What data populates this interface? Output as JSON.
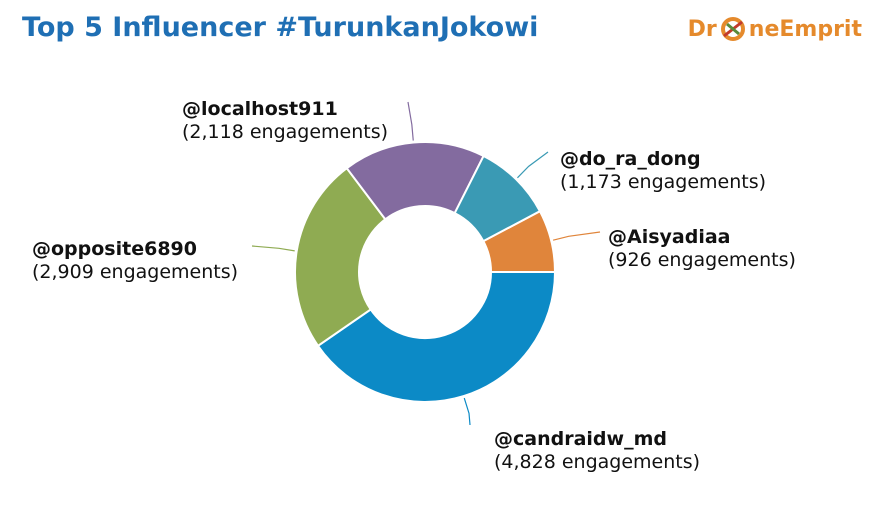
{
  "title": "Top 5 Influencer #TurunkanJokowi",
  "logo": {
    "part1": "Dr",
    "part2": "neEmprit"
  },
  "chart_data": {
    "type": "pie",
    "donut": true,
    "title": "Top 5 Influencer #TurunkanJokowi",
    "slices": [
      {
        "name": "@Aisyadiaa",
        "value": 926,
        "label": "(926 engagements)",
        "color": "#e0853b"
      },
      {
        "name": "@candraidw_md",
        "value": 4828,
        "label": "(4,828 engagements)",
        "color": "#0c8ac6"
      },
      {
        "name": "@opposite6890",
        "value": 2909,
        "label": "(2,909 engagements)",
        "color": "#8fab52"
      },
      {
        "name": "@localhost911",
        "value": 2118,
        "label": "(2,118 engagements)",
        "color": "#836b9f"
      },
      {
        "name": "@do_ra_dong",
        "value": 1173,
        "label": "(1,173 engagements)",
        "color": "#3a9ab4"
      }
    ]
  }
}
